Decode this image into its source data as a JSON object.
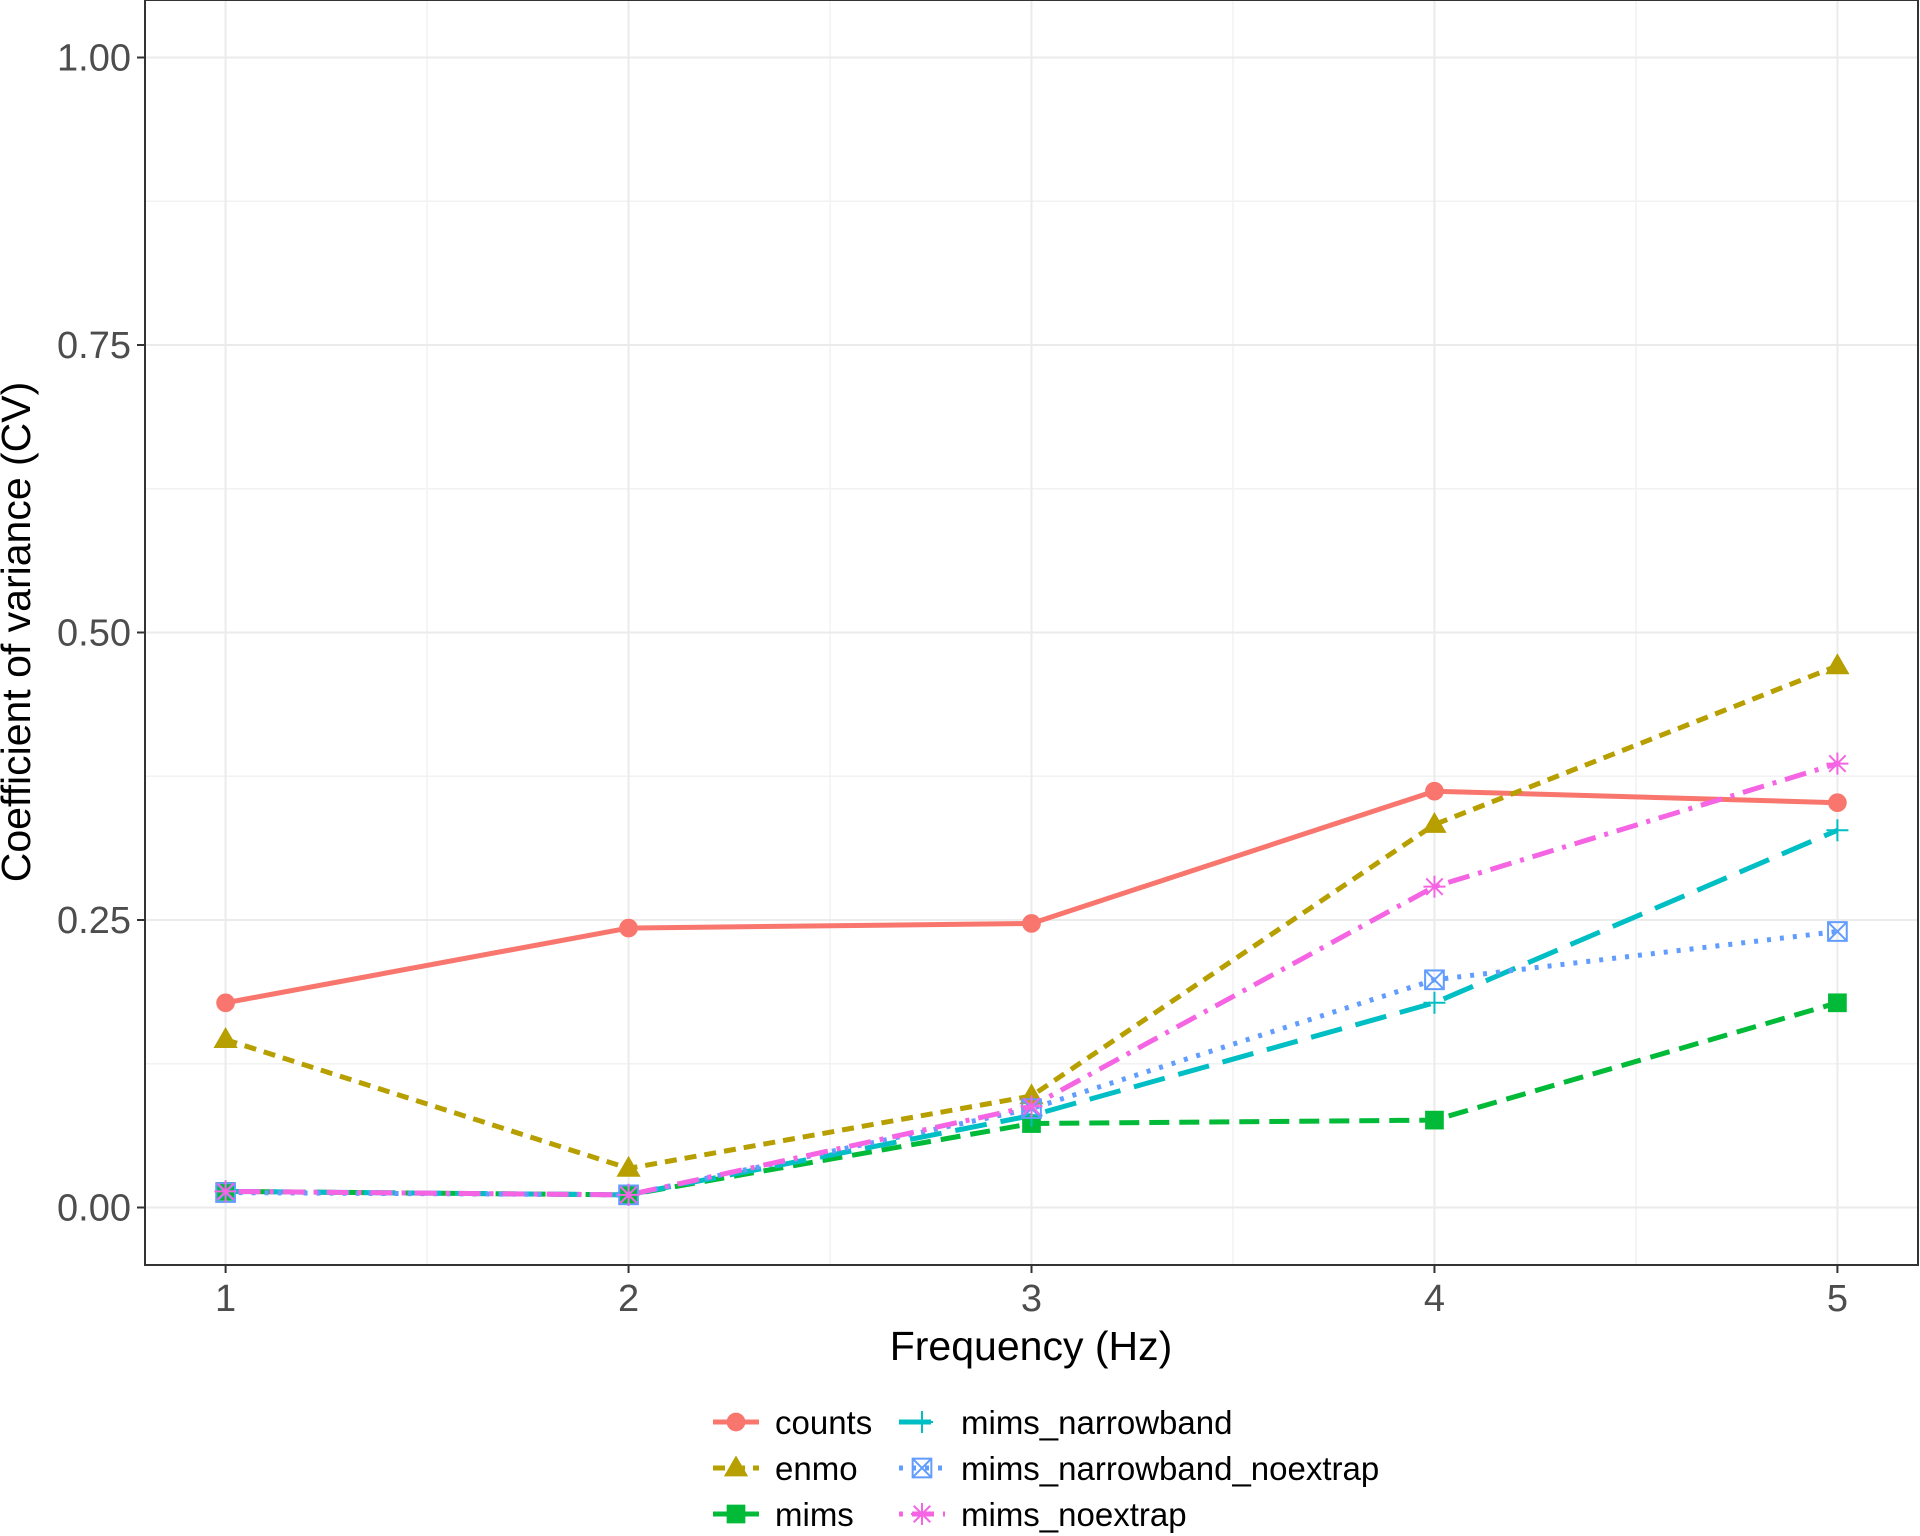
{
  "chart_data": {
    "type": "line",
    "xlabel": "Frequency (Hz)",
    "ylabel": "Coefficient of variance (CV)",
    "x": [
      1,
      2,
      3,
      4,
      5
    ],
    "xlim": [
      0.8,
      5.2
    ],
    "ylim": [
      -0.05,
      1.05
    ],
    "xticks": [
      1,
      2,
      3,
      4,
      5
    ],
    "yticks": [
      0,
      0.25,
      0.5,
      0.75,
      1.0
    ],
    "ytick_labels": [
      "0.00",
      "0.25",
      "0.50",
      "0.75",
      "1.00"
    ],
    "grid": true,
    "legend_position": "bottom",
    "series": [
      {
        "name": "counts",
        "color": "#F8766D",
        "marker": "circle",
        "dash": "solid",
        "values": [
          0.178,
          0.243,
          0.247,
          0.362,
          0.352
        ]
      },
      {
        "name": "enmo",
        "color": "#B79F00",
        "marker": "triangle",
        "dash": "shortdash",
        "values": [
          0.146,
          0.034,
          0.097,
          0.333,
          0.471
        ]
      },
      {
        "name": "mims",
        "color": "#00BA38",
        "marker": "square",
        "dash": "dashed",
        "values": [
          0.014,
          0.011,
          0.073,
          0.076,
          0.178
        ]
      },
      {
        "name": "mims_narrowband",
        "color": "#00BFC4",
        "marker": "plus",
        "dash": "longdash",
        "values": [
          0.014,
          0.011,
          0.08,
          0.178,
          0.328
        ]
      },
      {
        "name": "mims_narrowband_noextrap",
        "color": "#619CFF",
        "marker": "squarex",
        "dash": "dotted",
        "values": [
          0.013,
          0.011,
          0.086,
          0.198,
          0.24
        ]
      },
      {
        "name": "mims_noextrap",
        "color": "#F564E3",
        "marker": "asterisk",
        "dash": "dotdash",
        "values": [
          0.014,
          0.011,
          0.088,
          0.279,
          0.386
        ]
      }
    ]
  }
}
